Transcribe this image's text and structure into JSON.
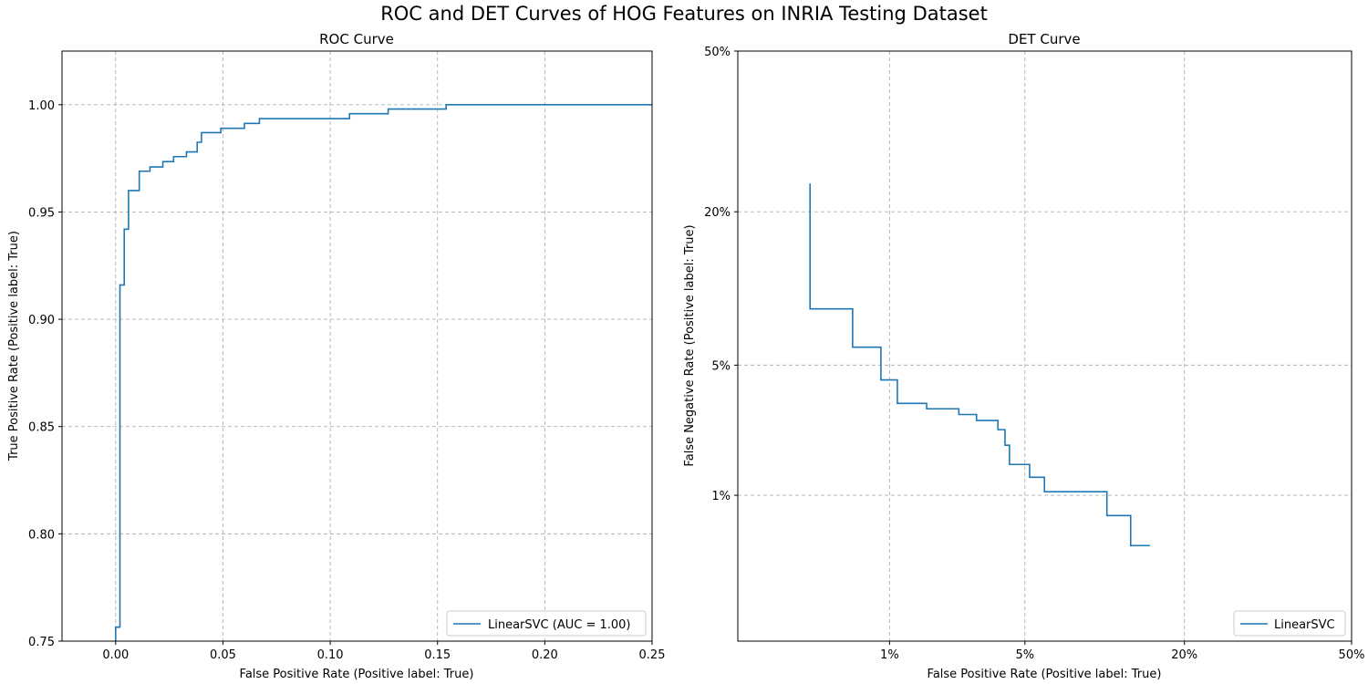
{
  "figure": {
    "title": "ROC and DET Curves of HOG Features on INRIA Testing Dataset"
  },
  "colors": {
    "series": "#1f77b4",
    "grid": "#b0b0b0"
  },
  "chart_data": [
    {
      "type": "line",
      "title": "ROC Curve",
      "xlabel": "False Positive Rate (Positive label: True)",
      "ylabel": "True Positive Rate (Positive label: True)",
      "xlim": [
        -0.025,
        0.25
      ],
      "ylim": [
        0.75,
        1.025
      ],
      "xticks": [
        0.0,
        0.05,
        0.1,
        0.15,
        0.2,
        0.25
      ],
      "xtick_labels": [
        "0.00",
        "0.05",
        "0.10",
        "0.15",
        "0.20",
        "0.25"
      ],
      "yticks": [
        0.75,
        0.8,
        0.85,
        0.9,
        0.95,
        1.0
      ],
      "ytick_labels": [
        "0.75",
        "0.80",
        "0.85",
        "0.90",
        "0.95",
        "1.00"
      ],
      "grid": true,
      "legend": "lower-right",
      "series": [
        {
          "name": "LinearSVC (AUC = 1.00)",
          "step": true,
          "x": [
            0.0,
            0.0,
            0.002,
            0.002,
            0.004,
            0.004,
            0.006,
            0.006,
            0.011,
            0.011,
            0.016,
            0.016,
            0.022,
            0.022,
            0.027,
            0.027,
            0.033,
            0.033,
            0.038,
            0.038,
            0.04,
            0.04,
            0.049,
            0.049,
            0.06,
            0.06,
            0.067,
            0.067,
            0.109,
            0.109,
            0.127,
            0.127,
            0.154,
            0.154,
            0.25
          ],
          "y": [
            0.75,
            0.7565,
            0.7565,
            0.916,
            0.916,
            0.942,
            0.942,
            0.96,
            0.96,
            0.969,
            0.969,
            0.971,
            0.971,
            0.9735,
            0.9735,
            0.9758,
            0.9758,
            0.978,
            0.978,
            0.9825,
            0.9825,
            0.987,
            0.987,
            0.989,
            0.989,
            0.9913,
            0.9913,
            0.9935,
            0.9935,
            0.9958,
            0.9958,
            0.998,
            0.998,
            1.0,
            1.0
          ]
        }
      ]
    },
    {
      "type": "line",
      "title": "DET Curve",
      "xlabel": "False Positive Rate (Positive label: True)",
      "ylabel": "False Negative Rate (Positive label: True)",
      "scale": "probit",
      "xlim": [
        0.001,
        0.5
      ],
      "ylim": [
        0.001,
        0.5
      ],
      "xticks": [
        0.01,
        0.05,
        0.2,
        0.5
      ],
      "xtick_labels": [
        "1%",
        "5%",
        "20%",
        "50%"
      ],
      "yticks": [
        0.01,
        0.05,
        0.2,
        0.5
      ],
      "ytick_labels": [
        "1%",
        "5%",
        "20%",
        "50%"
      ],
      "grid": true,
      "legend": "lower-right",
      "series": [
        {
          "name": "LinearSVC",
          "step": true,
          "x": [
            0.0032,
            0.0032,
            0.006,
            0.006,
            0.0089,
            0.0089,
            0.0111,
            0.0111,
            0.0162,
            0.0162,
            0.024,
            0.024,
            0.0295,
            0.0295,
            0.0375,
            0.0375,
            0.0405,
            0.0405,
            0.0425,
            0.0425,
            0.0525,
            0.0525,
            0.061,
            0.061,
            0.109,
            0.109,
            0.133,
            0.133,
            0.155
          ],
          "y": [
            0.244,
            0.0885,
            0.0885,
            0.0605,
            0.0605,
            0.0425,
            0.0425,
            0.0325,
            0.0325,
            0.0305,
            0.0305,
            0.0285,
            0.0285,
            0.0265,
            0.0265,
            0.0237,
            0.0237,
            0.0195,
            0.0195,
            0.0152,
            0.0152,
            0.0128,
            0.0128,
            0.0105,
            0.0105,
            0.0075,
            0.0075,
            0.0048,
            0.0048
          ]
        }
      ]
    }
  ]
}
